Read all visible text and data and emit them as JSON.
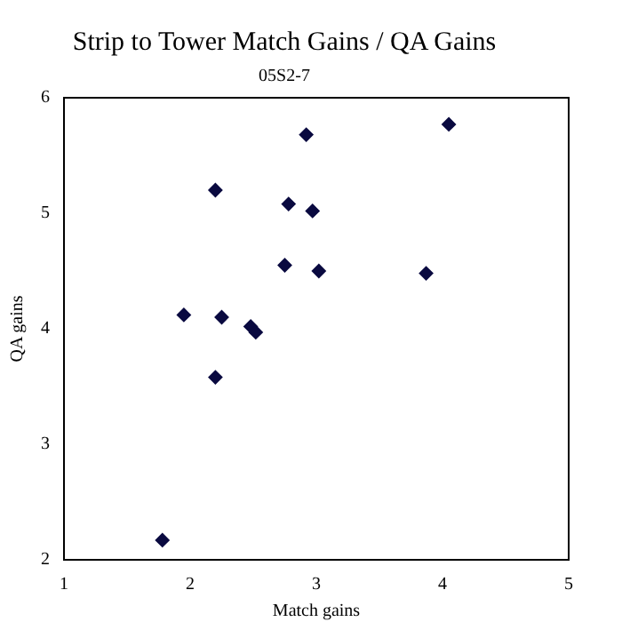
{
  "chart_data": {
    "type": "scatter",
    "title": "Strip to Tower Match Gains / QA Gains",
    "subtitle": "05S2-7",
    "xlabel": "Match gains",
    "ylabel": "QA gains",
    "x": [
      1.78,
      1.95,
      2.2,
      2.2,
      2.25,
      2.48,
      2.52,
      2.75,
      2.78,
      2.92,
      2.97,
      3.02,
      3.87,
      4.05
    ],
    "values": [
      2.17,
      4.12,
      5.2,
      3.58,
      4.1,
      4.02,
      3.97,
      4.55,
      5.08,
      5.68,
      5.02,
      4.5,
      4.48,
      5.77
    ],
    "color": "#0a0a40",
    "marker": "diamond",
    "xlim": [
      1,
      5
    ],
    "xticks": [
      1,
      2,
      3,
      4,
      5
    ],
    "ylim": [
      2,
      6
    ],
    "yticks": [
      2,
      3,
      4,
      5,
      6
    ],
    "grid": false,
    "legend": false
  }
}
